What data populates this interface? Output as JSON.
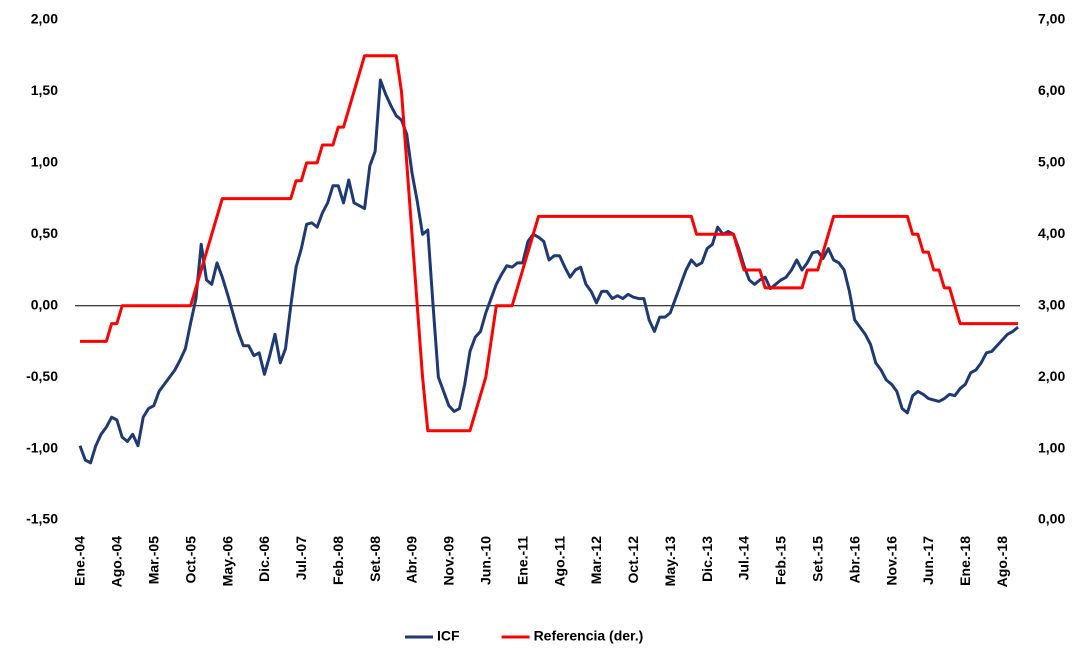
{
  "chart_data": {
    "type": "line",
    "categories": [
      "Ene.-04",
      null,
      null,
      null,
      null,
      null,
      null,
      "Ago.-04",
      null,
      null,
      null,
      null,
      null,
      null,
      "Mar.-05",
      null,
      null,
      null,
      null,
      null,
      null,
      "Oct.-05",
      null,
      null,
      null,
      null,
      null,
      null,
      "May.-06",
      null,
      null,
      null,
      null,
      null,
      null,
      "Dic.-06",
      null,
      null,
      null,
      null,
      null,
      null,
      "Jul.-07",
      null,
      null,
      null,
      null,
      null,
      null,
      "Feb.-08",
      null,
      null,
      null,
      null,
      null,
      null,
      "Set.-08",
      null,
      null,
      null,
      null,
      null,
      null,
      "Abr.-09",
      null,
      null,
      null,
      null,
      null,
      null,
      "Nov.-09",
      null,
      null,
      null,
      null,
      null,
      null,
      "Jun.-10",
      null,
      null,
      null,
      null,
      null,
      null,
      "Ene.-11",
      null,
      null,
      null,
      null,
      null,
      null,
      "Ago.-11",
      null,
      null,
      null,
      null,
      null,
      null,
      "Mar.-12",
      null,
      null,
      null,
      null,
      null,
      null,
      "Oct.-12",
      null,
      null,
      null,
      null,
      null,
      null,
      "May.-13",
      null,
      null,
      null,
      null,
      null,
      null,
      "Dic.-13",
      null,
      null,
      null,
      null,
      null,
      null,
      "Jul.-14",
      null,
      null,
      null,
      null,
      null,
      null,
      "Feb.-15",
      null,
      null,
      null,
      null,
      null,
      null,
      "Set.-15",
      null,
      null,
      null,
      null,
      null,
      null,
      "Abr.-16",
      null,
      null,
      null,
      null,
      null,
      null,
      "Nov.-16",
      null,
      null,
      null,
      null,
      null,
      null,
      "Jun.-17",
      null,
      null,
      null,
      null,
      null,
      null,
      "Ene.-18",
      null,
      null,
      null,
      null,
      null,
      null,
      "Ago.-18",
      null,
      null,
      null
    ],
    "series": [
      {
        "name": "ICF",
        "color": "#1f3a73",
        "values": [
          -0.98,
          -1.08,
          -1.1,
          -0.98,
          -0.9,
          -0.85,
          -0.78,
          -0.8,
          -0.92,
          -0.95,
          -0.9,
          -0.98,
          -0.78,
          -0.72,
          -0.7,
          -0.6,
          -0.55,
          -0.5,
          -0.45,
          -0.38,
          -0.3,
          -0.12,
          0.05,
          0.43,
          0.18,
          0.15,
          0.3,
          0.2,
          0.08,
          -0.05,
          -0.18,
          -0.28,
          -0.28,
          -0.35,
          -0.33,
          -0.48,
          -0.35,
          -0.2,
          -0.4,
          -0.3,
          0.0,
          0.27,
          0.4,
          0.57,
          0.58,
          0.55,
          0.65,
          0.72,
          0.84,
          0.84,
          0.72,
          0.88,
          0.72,
          0.7,
          0.68,
          0.98,
          1.08,
          1.58,
          1.48,
          1.4,
          1.33,
          1.3,
          1.2,
          0.93,
          0.73,
          0.5,
          0.53,
          0.0,
          -0.5,
          -0.6,
          -0.7,
          -0.74,
          -0.72,
          -0.55,
          -0.32,
          -0.22,
          -0.18,
          -0.05,
          0.05,
          0.15,
          0.22,
          0.28,
          0.27,
          0.3,
          0.3,
          0.45,
          0.5,
          0.48,
          0.45,
          0.32,
          0.35,
          0.35,
          0.27,
          0.2,
          0.25,
          0.27,
          0.15,
          0.1,
          0.02,
          0.1,
          0.1,
          0.05,
          0.07,
          0.05,
          0.08,
          0.06,
          0.05,
          0.05,
          -0.1,
          -0.18,
          -0.08,
          -0.08,
          -0.05,
          0.05,
          0.15,
          0.25,
          0.32,
          0.28,
          0.3,
          0.4,
          0.43,
          0.55,
          0.5,
          0.52,
          0.5,
          0.4,
          0.28,
          0.18,
          0.15,
          0.18,
          0.2,
          0.12,
          0.15,
          0.18,
          0.2,
          0.25,
          0.32,
          0.25,
          0.3,
          0.37,
          0.38,
          0.33,
          0.4,
          0.32,
          0.3,
          0.25,
          0.1,
          -0.1,
          -0.15,
          -0.2,
          -0.27,
          -0.4,
          -0.45,
          -0.52,
          -0.55,
          -0.6,
          -0.72,
          -0.75,
          -0.63,
          -0.6,
          -0.62,
          -0.65,
          -0.66,
          -0.67,
          -0.65,
          -0.62,
          -0.63,
          -0.58,
          -0.55,
          -0.47,
          -0.45,
          -0.4,
          -0.33,
          -0.32,
          -0.28,
          -0.24,
          -0.2,
          -0.18,
          -0.15
        ]
      },
      {
        "name": "Referencia (der.)",
        "color": "#ff0000",
        "axis": "y2",
        "values": [
          2.5,
          2.5,
          2.5,
          2.5,
          2.5,
          2.5,
          2.75,
          2.75,
          3.0,
          3.0,
          3.0,
          3.0,
          3.0,
          3.0,
          3.0,
          3.0,
          3.0,
          3.0,
          3.0,
          3.0,
          3.0,
          3.0,
          3.25,
          3.5,
          3.75,
          4.0,
          4.25,
          4.5,
          4.5,
          4.5,
          4.5,
          4.5,
          4.5,
          4.5,
          4.5,
          4.5,
          4.5,
          4.5,
          4.5,
          4.5,
          4.5,
          4.75,
          4.75,
          5.0,
          5.0,
          5.0,
          5.25,
          5.25,
          5.25,
          5.5,
          5.5,
          5.75,
          6.0,
          6.25,
          6.5,
          6.5,
          6.5,
          6.5,
          6.5,
          6.5,
          6.5,
          6.0,
          5.0,
          4.0,
          3.0,
          2.0,
          1.25,
          1.25,
          1.25,
          1.25,
          1.25,
          1.25,
          1.25,
          1.25,
          1.25,
          1.5,
          1.75,
          2.0,
          2.5,
          3.0,
          3.0,
          3.0,
          3.0,
          3.25,
          3.5,
          3.75,
          4.0,
          4.25,
          4.25,
          4.25,
          4.25,
          4.25,
          4.25,
          4.25,
          4.25,
          4.25,
          4.25,
          4.25,
          4.25,
          4.25,
          4.25,
          4.25,
          4.25,
          4.25,
          4.25,
          4.25,
          4.25,
          4.25,
          4.25,
          4.25,
          4.25,
          4.25,
          4.25,
          4.25,
          4.25,
          4.25,
          4.25,
          4.0,
          4.0,
          4.0,
          4.0,
          4.0,
          4.0,
          4.0,
          4.0,
          3.75,
          3.5,
          3.5,
          3.5,
          3.5,
          3.25,
          3.25,
          3.25,
          3.25,
          3.25,
          3.25,
          3.25,
          3.25,
          3.5,
          3.5,
          3.5,
          3.75,
          4.0,
          4.25,
          4.25,
          4.25,
          4.25,
          4.25,
          4.25,
          4.25,
          4.25,
          4.25,
          4.25,
          4.25,
          4.25,
          4.25,
          4.25,
          4.25,
          4.0,
          4.0,
          3.75,
          3.75,
          3.5,
          3.5,
          3.25,
          3.25,
          3.0,
          2.75,
          2.75,
          2.75,
          2.75,
          2.75,
          2.75,
          2.75,
          2.75,
          2.75,
          2.75,
          2.75,
          2.75
        ]
      }
    ],
    "ylim": [
      -1.5,
      2
    ],
    "yticks": [
      {
        "value": -1.5,
        "label": "-1,50"
      },
      {
        "value": -1,
        "label": "-1,00"
      },
      {
        "value": -0.5,
        "label": "-0,50"
      },
      {
        "value": 0,
        "label": "0,00"
      },
      {
        "value": 0.5,
        "label": "0,50"
      },
      {
        "value": 1,
        "label": "1,00"
      },
      {
        "value": 1.5,
        "label": "1,50"
      },
      {
        "value": 2,
        "label": "2,00"
      }
    ],
    "y2lim": [
      0,
      7
    ],
    "y2ticks": [
      {
        "value": 0,
        "label": "0,00"
      },
      {
        "value": 1,
        "label": "1,00"
      },
      {
        "value": 2,
        "label": "2,00"
      },
      {
        "value": 3,
        "label": "3,00"
      },
      {
        "value": 4,
        "label": "4,00"
      },
      {
        "value": 5,
        "label": "5,00"
      },
      {
        "value": 6,
        "label": "6,00"
      },
      {
        "value": 7,
        "label": "7,00"
      }
    ],
    "legend": "bottom"
  }
}
